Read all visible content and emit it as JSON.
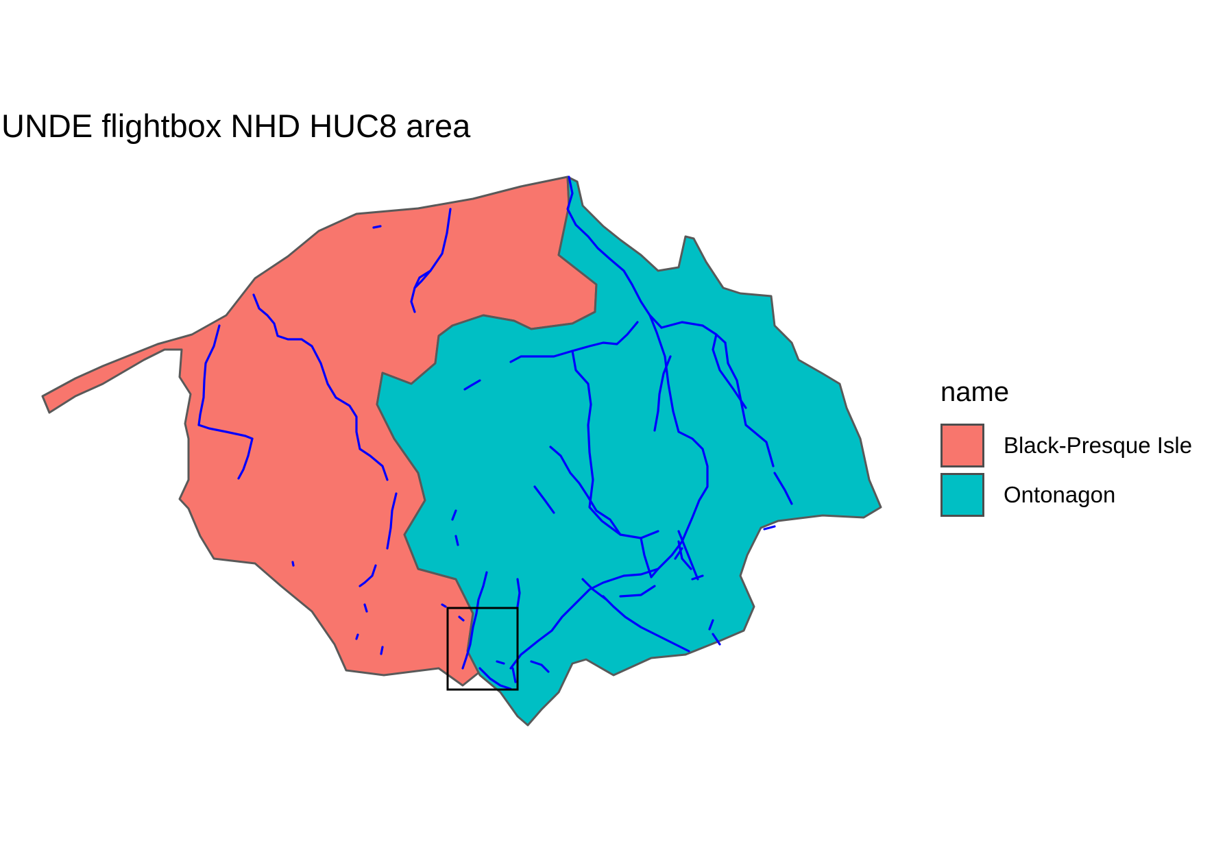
{
  "title": "UNDE flightbox NHD HUC8 area",
  "legend": {
    "title": "name",
    "items": [
      {
        "label": "Black-Presque Isle",
        "color": "#F8766D"
      },
      {
        "label": "Ontonagon",
        "color": "#00BFC4"
      }
    ]
  },
  "colors": {
    "outline": "#595959",
    "flowlines": "#0000FF",
    "flightbox": "#000000"
  }
}
